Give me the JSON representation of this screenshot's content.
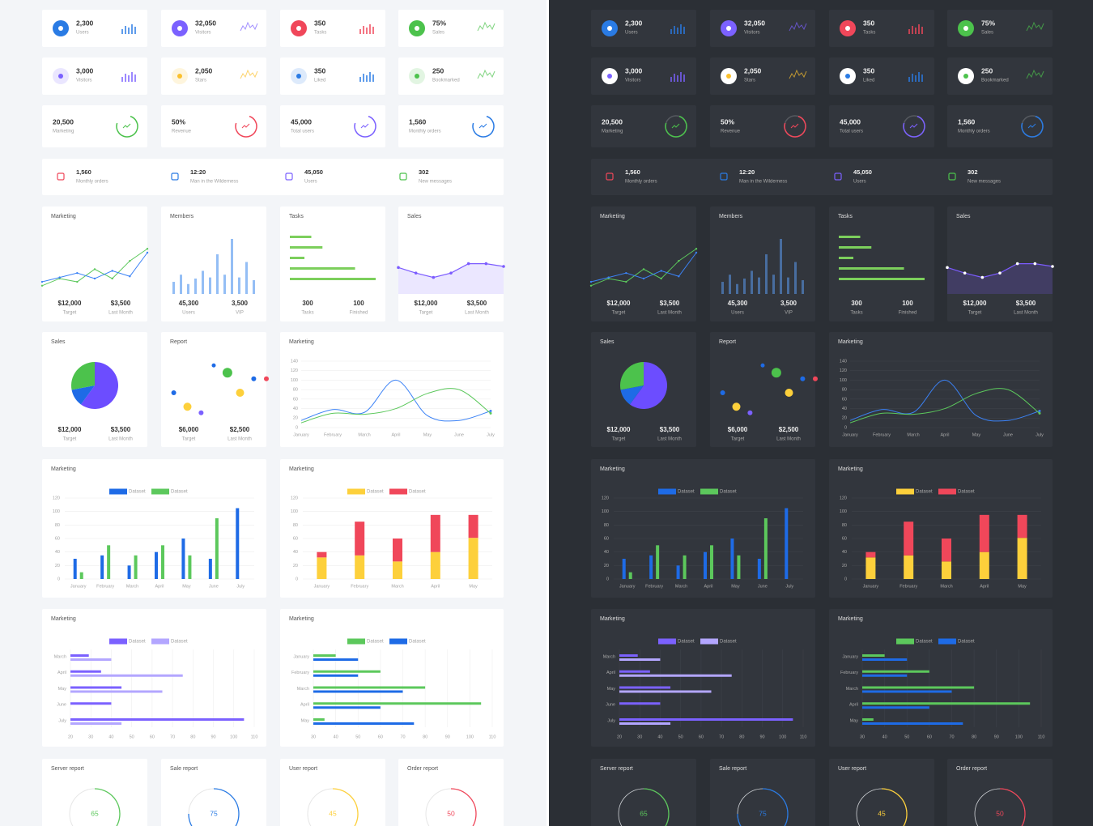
{
  "stat_cards": [
    {
      "value": "2,300",
      "label": "Users",
      "color": "#2a7be4"
    },
    {
      "value": "32,050",
      "label": "Visitors",
      "color": "#7b61ff"
    },
    {
      "value": "350",
      "label": "Tasks",
      "color": "#f0475a"
    },
    {
      "value": "75%",
      "label": "Sales",
      "color": "#4cc24c"
    },
    {
      "value": "3,000",
      "label": "Visitors",
      "color": "#7b61ff"
    },
    {
      "value": "2,050",
      "label": "Stars",
      "color": "#fbc02d"
    },
    {
      "value": "350",
      "label": "Liked",
      "color": "#2a7be4"
    },
    {
      "value": "250",
      "label": "Bookmarked",
      "color": "#4cc24c"
    }
  ],
  "ring_cards": [
    {
      "value": "20,500",
      "label": "Marketing",
      "color": "#4cc24c"
    },
    {
      "value": "50%",
      "label": "Revenue",
      "color": "#f0475a"
    },
    {
      "value": "45,000",
      "label": "Total users",
      "color": "#7b61ff"
    },
    {
      "value": "1,560",
      "label": "Monthly orders",
      "color": "#2a7be4"
    }
  ],
  "info_strip": [
    {
      "value": "1,560",
      "label": "Monthly orders",
      "color": "#f0475a"
    },
    {
      "value": "12:20",
      "label": "Man in the Wilderness",
      "color": "#2a7be4"
    },
    {
      "value": "45,050",
      "label": "Users",
      "color": "#7b61ff"
    },
    {
      "value": "302",
      "label": "New messages",
      "color": "#4cc24c"
    }
  ],
  "mini_charts": [
    {
      "type": "line",
      "title": "Marketing",
      "ylim": [
        0,
        100
      ],
      "series": [
        {
          "color": "#5cc85c",
          "values": [
            15,
            28,
            22,
            45,
            28,
            60,
            82
          ]
        },
        {
          "color": "#3b82f6",
          "values": [
            22,
            30,
            38,
            28,
            42,
            32,
            75
          ]
        }
      ],
      "stats": [
        {
          "value": "$12,000",
          "label": "Target"
        },
        {
          "value": "$3,500",
          "label": "Last Month"
        }
      ]
    },
    {
      "type": "bar",
      "title": "Members",
      "ylim": [
        0,
        100
      ],
      "color": "#5b9bf0",
      "values": [
        22,
        35,
        18,
        28,
        42,
        30,
        72,
        35,
        100,
        30,
        58,
        25
      ],
      "stats": [
        {
          "value": "45,300",
          "label": "Users"
        },
        {
          "value": "3,500",
          "label": "VIP"
        }
      ]
    },
    {
      "type": "hbar",
      "title": "Tasks",
      "xlim": [
        0,
        100
      ],
      "color": "#7ccf5c",
      "values": [
        25,
        38,
        17,
        76,
        100
      ],
      "stats": [
        {
          "value": "300",
          "label": "Tasks"
        },
        {
          "value": "100",
          "label": "Finished"
        }
      ]
    },
    {
      "type": "area",
      "title": "Sales",
      "ylim": [
        0,
        100
      ],
      "color": "#7c5cff",
      "values": [
        48,
        38,
        30,
        38,
        55,
        55,
        50
      ],
      "stats": [
        {
          "value": "$12,000",
          "label": "Target"
        },
        {
          "value": "$3,500",
          "label": "Last Month"
        }
      ]
    }
  ],
  "panels_row": {
    "pie": {
      "type": "pie",
      "title": "Sales",
      "values": [
        60,
        12,
        28
      ],
      "colors": [
        "#6c4dff",
        "#1e6be6",
        "#4cc24c"
      ],
      "stats": [
        {
          "value": "$12,000",
          "label": "Target"
        },
        {
          "value": "$3,500",
          "label": "Last Month"
        }
      ]
    },
    "scatter": {
      "type": "scatter",
      "title": "Report",
      "xlim": [
        0,
        100
      ],
      "ylim": [
        0,
        100
      ],
      "x": [
        12,
        25,
        38,
        50,
        63,
        75,
        88,
        100
      ],
      "y": [
        40,
        17,
        7,
        85,
        73,
        40,
        63,
        63
      ],
      "sizes": [
        3,
        5,
        3,
        2.5,
        6,
        5,
        3,
        3
      ],
      "colors": [
        "#1e6be6",
        "#fdd03b",
        "#7b61ff",
        "#1e6be6",
        "#4cc24c",
        "#fdd03b",
        "#1e6be6",
        "#f0475a"
      ],
      "stats": [
        {
          "value": "$6,000",
          "label": "Target"
        },
        {
          "value": "$2,500",
          "label": "Last Month"
        }
      ]
    },
    "line": {
      "type": "line",
      "title": "Marketing",
      "categories": [
        "January",
        "February",
        "March",
        "April",
        "May",
        "June",
        "July"
      ],
      "ylim": [
        0,
        140
      ],
      "yticks": [
        0,
        20,
        40,
        60,
        80,
        100,
        120,
        140
      ],
      "series": [
        {
          "color": "#3b82f6",
          "values": [
            15,
            38,
            32,
            100,
            25,
            15,
            35
          ]
        },
        {
          "color": "#5cc85c",
          "values": [
            10,
            30,
            28,
            40,
            72,
            80,
            30
          ]
        }
      ]
    }
  },
  "bar_charts": [
    {
      "type": "bar",
      "title": "Marketing",
      "categories": [
        "January",
        "February",
        "March",
        "April",
        "May",
        "June",
        "July"
      ],
      "ylim": [
        0,
        120
      ],
      "yticks": [
        0,
        20,
        40,
        60,
        80,
        100,
        120
      ],
      "series": [
        {
          "name": "Dataset",
          "color": "#1e6be6",
          "values": [
            30,
            35,
            20,
            40,
            60,
            30,
            105
          ]
        },
        {
          "name": "Dataset",
          "color": "#5cc85c",
          "values": [
            10,
            50,
            35,
            50,
            35,
            90,
            null
          ]
        }
      ]
    },
    {
      "type": "stacked_bar",
      "title": "Marketing",
      "categories": [
        "January",
        "February",
        "March",
        "April",
        "May"
      ],
      "ylim": [
        0,
        120
      ],
      "yticks": [
        0,
        20,
        40,
        60,
        80,
        100,
        120
      ],
      "series": [
        {
          "name": "Dataset",
          "color": "#fdd03b",
          "values": [
            32,
            35,
            26,
            40,
            61
          ]
        },
        {
          "name": "Dataset",
          "color": "#f0475a",
          "values": [
            8,
            50,
            34,
            55,
            34
          ]
        }
      ]
    }
  ],
  "hbar_charts": [
    {
      "type": "hbar",
      "title": "Marketing",
      "categories": [
        "March",
        "April",
        "May",
        "June",
        "July"
      ],
      "xlim": [
        20,
        110
      ],
      "xticks": [
        20,
        30,
        40,
        50,
        60,
        70,
        80,
        90,
        100,
        110
      ],
      "series": [
        {
          "name": "Dataset",
          "color": "#7b61ff",
          "values": [
            29,
            35,
            45,
            40,
            105
          ]
        },
        {
          "name": "Dataset",
          "color": "#b3a6ff",
          "values": [
            40,
            75,
            65,
            null,
            45
          ]
        }
      ]
    },
    {
      "type": "hbar",
      "title": "Marketing",
      "categories": [
        "January",
        "February",
        "March",
        "April",
        "May"
      ],
      "xlim": [
        30,
        110
      ],
      "xticks": [
        30,
        40,
        50,
        60,
        70,
        80,
        90,
        100,
        110
      ],
      "series": [
        {
          "name": "Dataset",
          "color": "#5cc85c",
          "values": [
            40,
            60,
            80,
            105,
            35
          ]
        },
        {
          "name": "Dataset",
          "color": "#1e6be6",
          "values": [
            50,
            50,
            70,
            60,
            75
          ]
        }
      ]
    }
  ],
  "gauges": [
    {
      "title": "Server report",
      "value": 65,
      "lim": [
        0,
        100
      ],
      "color": "#5cc85c"
    },
    {
      "title": "Sale report",
      "value": 75,
      "lim": [
        0,
        100
      ],
      "color": "#2a7be4"
    },
    {
      "title": "User report",
      "value": 45,
      "lim": [
        0,
        100
      ],
      "color": "#fdd03b"
    },
    {
      "title": "Order report",
      "value": 50,
      "lim": [
        0,
        100
      ],
      "color": "#f0475a"
    }
  ]
}
